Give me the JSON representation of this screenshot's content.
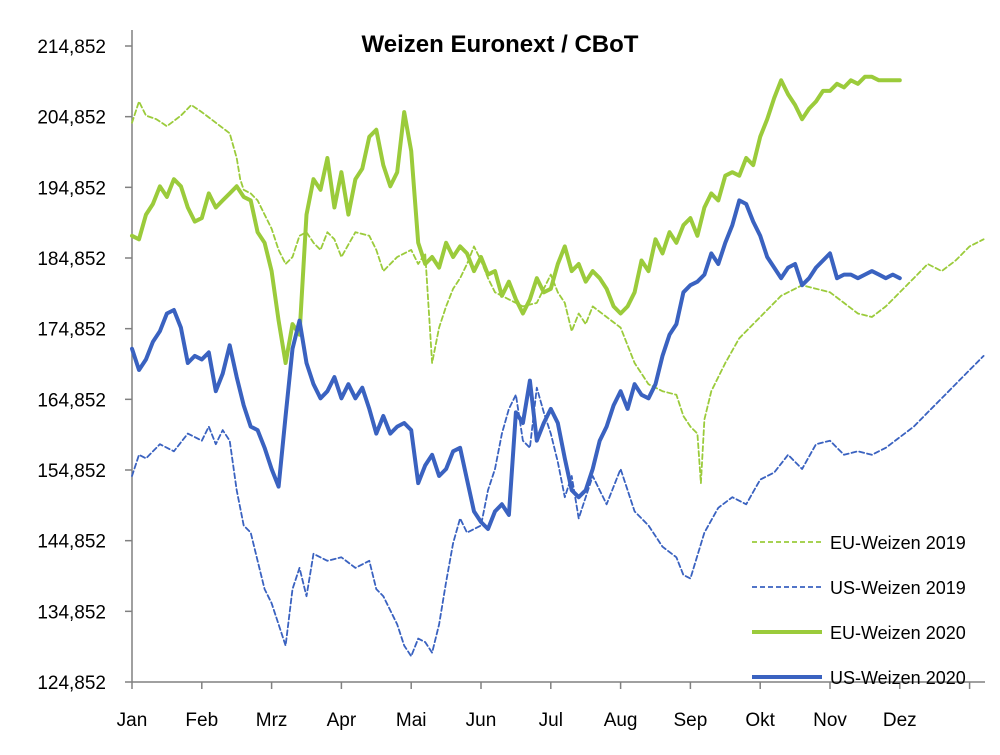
{
  "chart_data": {
    "type": "line",
    "title": "Weizen Euronext / CBoT",
    "xlabel": "",
    "ylabel": "",
    "ylim": [
      124852,
      214852
    ],
    "yticks": [
      "124,852",
      "134,852",
      "144,852",
      "154,852",
      "164,852",
      "174,852",
      "184,852",
      "194,852",
      "204,852",
      "214,852"
    ],
    "ytick_values": [
      124852,
      134852,
      144852,
      154852,
      164852,
      174852,
      184852,
      194852,
      204852,
      214852
    ],
    "xlim": [
      0,
      12.4
    ],
    "x_tick_labels": [
      "Jan",
      "Feb",
      "Mrz",
      "Apr",
      "Mai",
      "Jun",
      "Jul",
      "Aug",
      "Sep",
      "Okt",
      "Nov",
      "Dez"
    ],
    "x_tick_positions": [
      0,
      1,
      2,
      3,
      4,
      5,
      6,
      7,
      8,
      9,
      10,
      11
    ],
    "grid": false,
    "legend_position": "bottom-right",
    "series": [
      {
        "name": "EU-Weizen 2019",
        "color": "#9BCB3B",
        "style": "dashed",
        "width": 1.8,
        "x": [
          0,
          0.1,
          0.2,
          0.35,
          0.5,
          0.7,
          0.85,
          1.0,
          1.2,
          1.4,
          1.5,
          1.55,
          1.6,
          1.7,
          1.8,
          1.9,
          2.0,
          2.1,
          2.2,
          2.3,
          2.4,
          2.5,
          2.6,
          2.7,
          2.8,
          2.9,
          3.0,
          3.2,
          3.4,
          3.5,
          3.6,
          3.8,
          4.0,
          4.1,
          4.2,
          4.3,
          4.4,
          4.5,
          4.6,
          4.7,
          4.8,
          4.9,
          5.0,
          5.1,
          5.2,
          5.4,
          5.6,
          5.8,
          6.0,
          6.1,
          6.2,
          6.3,
          6.4,
          6.5,
          6.6,
          6.8,
          7.0,
          7.2,
          7.4,
          7.6,
          7.8,
          7.9,
          8.0,
          8.1,
          8.15,
          8.2,
          8.3,
          8.5,
          8.7,
          9.0,
          9.3,
          9.6,
          10.0,
          10.2,
          10.4,
          10.6,
          10.8,
          11.0,
          11.2,
          11.4,
          11.6,
          11.8,
          12.0,
          12.2
        ],
        "y": [
          204000,
          207000,
          205000,
          204500,
          203500,
          205000,
          206500,
          205500,
          204000,
          202500,
          199000,
          196000,
          194500,
          194000,
          193000,
          191000,
          189000,
          186000,
          184000,
          185000,
          188000,
          188500,
          187000,
          186000,
          188500,
          187500,
          185000,
          188500,
          188000,
          186000,
          183000,
          185000,
          186000,
          184000,
          185500,
          170000,
          175000,
          178000,
          180500,
          182000,
          184000,
          186500,
          184500,
          182000,
          180000,
          179000,
          178000,
          178500,
          182500,
          180000,
          178500,
          174500,
          177000,
          175500,
          178000,
          176500,
          175000,
          170000,
          167000,
          166000,
          165500,
          162500,
          161000,
          160000,
          153000,
          162000,
          166000,
          170000,
          173500,
          176500,
          179500,
          181000,
          180000,
          178500,
          177000,
          176500,
          178000,
          180000,
          182000,
          184000,
          183000,
          184500,
          186500,
          187500
        ]
      },
      {
        "name": "US-Weizen 2019",
        "color": "#3A62C0",
        "style": "dashed",
        "width": 1.8,
        "x": [
          0,
          0.1,
          0.2,
          0.4,
          0.6,
          0.8,
          1.0,
          1.1,
          1.2,
          1.3,
          1.4,
          1.5,
          1.6,
          1.7,
          1.8,
          1.9,
          2.0,
          2.1,
          2.2,
          2.3,
          2.4,
          2.5,
          2.6,
          2.8,
          3.0,
          3.2,
          3.4,
          3.5,
          3.6,
          3.8,
          3.9,
          4.0,
          4.1,
          4.2,
          4.3,
          4.4,
          4.5,
          4.6,
          4.7,
          4.8,
          5.0,
          5.1,
          5.2,
          5.3,
          5.4,
          5.5,
          5.6,
          5.7,
          5.8,
          5.9,
          6.0,
          6.1,
          6.2,
          6.3,
          6.4,
          6.6,
          6.8,
          7.0,
          7.2,
          7.4,
          7.6,
          7.8,
          7.9,
          8.0,
          8.2,
          8.4,
          8.6,
          8.8,
          9.0,
          9.2,
          9.4,
          9.6,
          9.8,
          10.0,
          10.2,
          10.4,
          10.6,
          10.8,
          11.0,
          11.2,
          11.4,
          11.6,
          11.8,
          12.0,
          12.2
        ],
        "y": [
          154000,
          157000,
          156500,
          158500,
          157500,
          160000,
          159000,
          161000,
          158500,
          160500,
          159000,
          152000,
          147000,
          146000,
          142000,
          138000,
          136000,
          133000,
          130000,
          138000,
          141000,
          137000,
          143000,
          142000,
          142500,
          141000,
          142000,
          138000,
          137000,
          133000,
          130000,
          128500,
          131000,
          130500,
          129000,
          133000,
          139000,
          144500,
          148000,
          146000,
          147000,
          152000,
          155000,
          160000,
          163500,
          165500,
          159000,
          158000,
          166500,
          163000,
          160000,
          156000,
          151000,
          154000,
          148000,
          154000,
          150000,
          155000,
          149000,
          147000,
          144000,
          142500,
          140000,
          139500,
          146000,
          149500,
          151000,
          150000,
          153500,
          154500,
          157000,
          155000,
          158500,
          159000,
          157000,
          157500,
          157000,
          158000,
          159500,
          161000,
          163000,
          165000,
          167000,
          169000,
          171000
        ]
      },
      {
        "name": "EU-Weizen 2020",
        "color": "#9BCB3B",
        "style": "solid",
        "width": 4,
        "x": [
          0,
          0.1,
          0.2,
          0.3,
          0.4,
          0.5,
          0.6,
          0.7,
          0.8,
          0.9,
          1.0,
          1.1,
          1.2,
          1.3,
          1.4,
          1.5,
          1.6,
          1.7,
          1.8,
          1.9,
          2.0,
          2.1,
          2.2,
          2.3,
          2.4,
          2.5,
          2.6,
          2.7,
          2.8,
          2.9,
          3.0,
          3.1,
          3.2,
          3.3,
          3.4,
          3.5,
          3.6,
          3.7,
          3.8,
          3.9,
          4.0,
          4.1,
          4.2,
          4.3,
          4.4,
          4.5,
          4.6,
          4.7,
          4.8,
          4.9,
          5.0,
          5.1,
          5.2,
          5.3,
          5.4,
          5.5,
          5.6,
          5.7,
          5.8,
          5.9,
          6.0,
          6.1,
          6.2,
          6.3,
          6.4,
          6.5,
          6.6,
          6.7,
          6.8,
          6.9,
          7.0,
          7.1,
          7.2,
          7.3,
          7.4,
          7.5,
          7.6,
          7.7,
          7.8,
          7.9,
          8.0,
          8.1,
          8.2,
          8.3,
          8.4,
          8.5,
          8.6,
          8.7,
          8.8,
          8.9,
          9.0,
          9.1,
          9.2,
          9.3,
          9.4,
          9.5,
          9.6,
          9.7,
          9.8,
          9.9,
          10.0,
          10.1,
          10.2,
          10.3,
          10.4,
          10.5,
          10.6,
          10.7,
          10.8,
          10.9,
          11.0
        ],
        "y": [
          188000,
          187500,
          191000,
          192500,
          195000,
          193500,
          196000,
          195000,
          192000,
          190000,
          190500,
          194000,
          192000,
          193000,
          194000,
          195000,
          193500,
          193000,
          188500,
          187000,
          183000,
          176000,
          170000,
          175500,
          174000,
          191000,
          196000,
          194500,
          199000,
          192000,
          197000,
          191000,
          196000,
          197500,
          202000,
          203000,
          198000,
          195000,
          197000,
          205500,
          200000,
          187000,
          184000,
          185000,
          183500,
          187000,
          185000,
          186500,
          185500,
          183000,
          185000,
          182500,
          183000,
          179500,
          181500,
          179000,
          177000,
          179000,
          182000,
          180000,
          180500,
          184000,
          186500,
          183000,
          184000,
          181500,
          183000,
          182000,
          180500,
          178000,
          177000,
          178000,
          180000,
          184500,
          183000,
          187500,
          185500,
          188500,
          187000,
          189500,
          190500,
          188000,
          192000,
          194000,
          193000,
          196500,
          197000,
          196500,
          199000,
          198000,
          202000,
          204500,
          207500,
          210000,
          208000,
          206500,
          204500,
          206000,
          207000,
          208500,
          208500,
          209500,
          209000,
          210000,
          209500,
          210500,
          210500,
          210000,
          210000,
          210000,
          210000
        ]
      },
      {
        "name": "US-Weizen 2020",
        "color": "#3A62C0",
        "style": "solid",
        "width": 4,
        "x": [
          0,
          0.1,
          0.2,
          0.3,
          0.4,
          0.5,
          0.6,
          0.7,
          0.8,
          0.9,
          1.0,
          1.1,
          1.2,
          1.3,
          1.4,
          1.5,
          1.6,
          1.7,
          1.8,
          1.9,
          2.0,
          2.1,
          2.2,
          2.3,
          2.4,
          2.5,
          2.6,
          2.7,
          2.8,
          2.9,
          3.0,
          3.1,
          3.2,
          3.3,
          3.4,
          3.5,
          3.6,
          3.7,
          3.8,
          3.9,
          4.0,
          4.1,
          4.2,
          4.3,
          4.4,
          4.5,
          4.6,
          4.7,
          4.8,
          4.9,
          5.0,
          5.1,
          5.2,
          5.3,
          5.4,
          5.5,
          5.6,
          5.7,
          5.8,
          5.9,
          6.0,
          6.1,
          6.2,
          6.3,
          6.4,
          6.5,
          6.6,
          6.7,
          6.8,
          6.9,
          7.0,
          7.1,
          7.2,
          7.3,
          7.4,
          7.5,
          7.6,
          7.7,
          7.8,
          7.9,
          8.0,
          8.1,
          8.2,
          8.3,
          8.4,
          8.5,
          8.6,
          8.7,
          8.8,
          8.9,
          9.0,
          9.1,
          9.2,
          9.3,
          9.4,
          9.5,
          9.6,
          9.7,
          9.8,
          9.9,
          10.0,
          10.1,
          10.2,
          10.3,
          10.4,
          10.5,
          10.6,
          10.7,
          10.8,
          10.9,
          11.0
        ],
        "y": [
          172000,
          169000,
          170500,
          173000,
          174500,
          177000,
          177500,
          175000,
          170000,
          171000,
          170500,
          171500,
          166000,
          168500,
          172500,
          168000,
          164000,
          161000,
          160500,
          158000,
          155000,
          152500,
          162500,
          172000,
          176000,
          170000,
          167000,
          165000,
          166000,
          168000,
          165000,
          167000,
          165000,
          166500,
          163500,
          160000,
          162500,
          160000,
          161000,
          161500,
          160500,
          153000,
          155500,
          157000,
          154000,
          155000,
          157500,
          158000,
          153500,
          149000,
          147500,
          146500,
          149000,
          150000,
          148500,
          163000,
          161500,
          167500,
          159000,
          161500,
          163500,
          161500,
          156500,
          152000,
          151000,
          152000,
          155000,
          159000,
          161000,
          164000,
          166000,
          163500,
          167000,
          165500,
          165000,
          167000,
          171000,
          174000,
          175500,
          180000,
          181000,
          181500,
          182500,
          185500,
          184000,
          187000,
          189500,
          193000,
          192500,
          190000,
          188000,
          185000,
          183500,
          182000,
          183500,
          184000,
          181000,
          182000,
          183500,
          184500,
          185500,
          182000,
          182500,
          182500,
          182000,
          182500,
          183000,
          182500,
          182000,
          182500,
          182000
        ]
      }
    ]
  }
}
